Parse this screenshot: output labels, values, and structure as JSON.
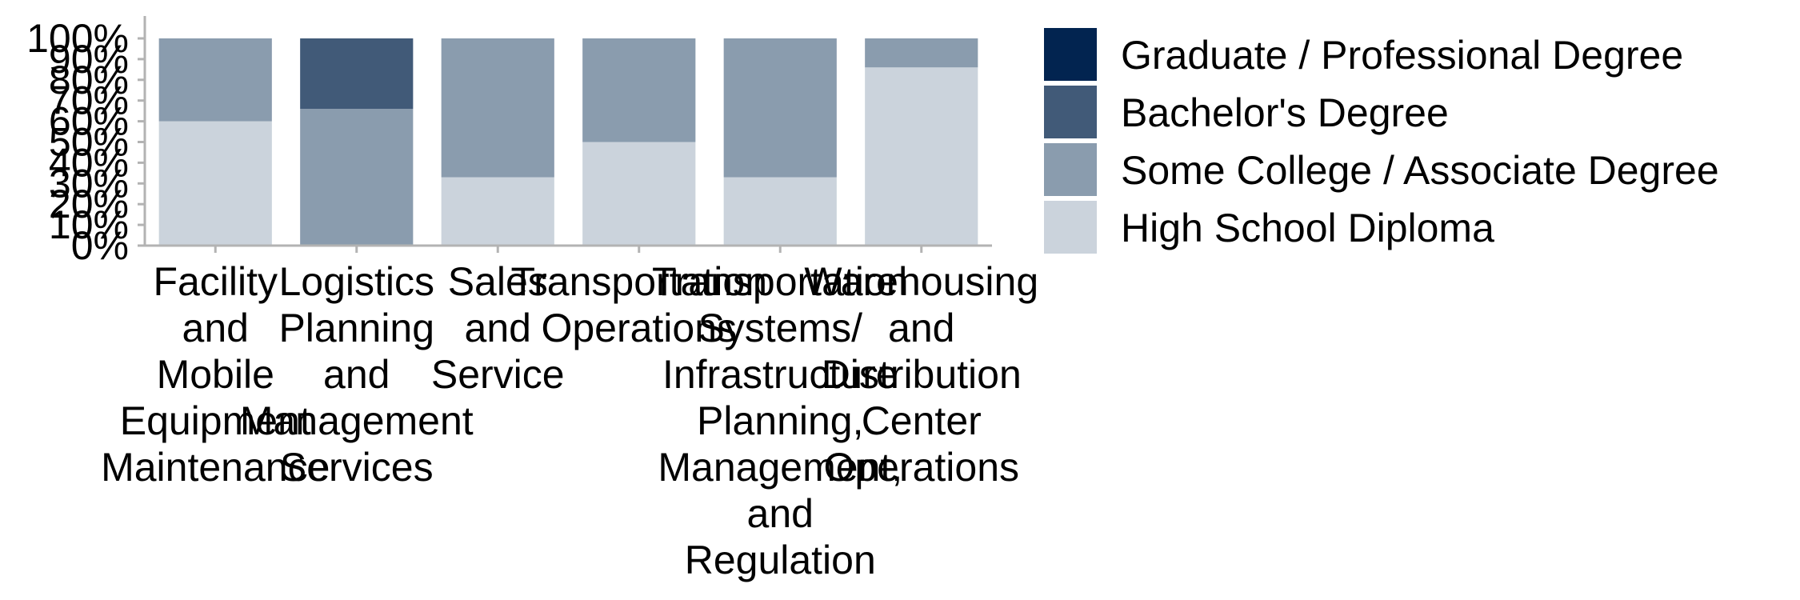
{
  "chart_data": {
    "type": "bar",
    "stacked": true,
    "categories": [
      [
        "Facility",
        "and",
        "Mobile",
        "Equipment",
        "Maintenance"
      ],
      [
        "Logistics",
        "Planning",
        "and",
        "Management",
        "Services"
      ],
      [
        "Sales",
        "and",
        "Service"
      ],
      [
        "Transportation",
        "Operations"
      ],
      [
        "Transportation",
        "Systems/",
        "Infrastructure",
        "Planning,",
        "Management,",
        "and",
        "Regulation"
      ],
      [
        "Warehousing",
        "and",
        "Distribution",
        "Center",
        "Operations"
      ]
    ],
    "series": [
      {
        "name": "High School Diploma",
        "color": "#cbd3dc",
        "values": [
          60,
          0,
          33,
          50,
          33,
          86
        ]
      },
      {
        "name": "Some College / Associate Degree",
        "color": "#8a9cae",
        "values": [
          40,
          66,
          67,
          50,
          67,
          14
        ]
      },
      {
        "name": "Bachelor's Degree",
        "color": "#415a78",
        "values": [
          0,
          34,
          0,
          0,
          0,
          0
        ]
      },
      {
        "name": "Graduate / Professional Degree",
        "color": "#022450",
        "values": [
          0,
          0,
          0,
          0,
          0,
          0
        ]
      }
    ],
    "legend_order": [
      "Graduate / Professional Degree",
      "Bachelor's Degree",
      "Some College / Associate Degree",
      "High School Diploma"
    ],
    "yticks": [
      "0%",
      "10%",
      "20%",
      "30%",
      "40%",
      "50%",
      "60%",
      "70%",
      "80%",
      "90%",
      "100%"
    ],
    "ylim": [
      0,
      100
    ],
    "legend_position": "right",
    "grid": false,
    "title": "",
    "xlabel": "",
    "ylabel": ""
  }
}
